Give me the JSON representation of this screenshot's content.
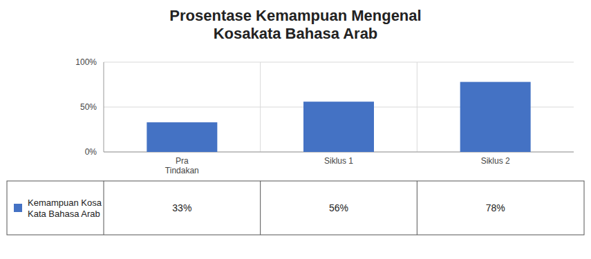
{
  "chart_data": {
    "type": "bar",
    "title": "Prosentase Kemampuan Mengenal\nKosakata Bahasa Arab",
    "categories": [
      "Pra\nTindakan",
      "Siklus 1",
      "Siklus 2"
    ],
    "series": [
      {
        "name": "Kemampuan Kosa\nKata Bahasa Arab",
        "color": "#4472C4",
        "values": [
          33,
          56,
          78
        ],
        "value_labels": [
          "33%",
          "56%",
          "78%"
        ]
      }
    ],
    "ylim": [
      0,
      100
    ],
    "yticks": [
      {
        "value": 0,
        "label": "0%"
      },
      {
        "value": 50,
        "label": "50%"
      },
      {
        "value": 100,
        "label": "100%"
      }
    ],
    "grid": true,
    "legend": "bottom",
    "data_labels": true
  }
}
